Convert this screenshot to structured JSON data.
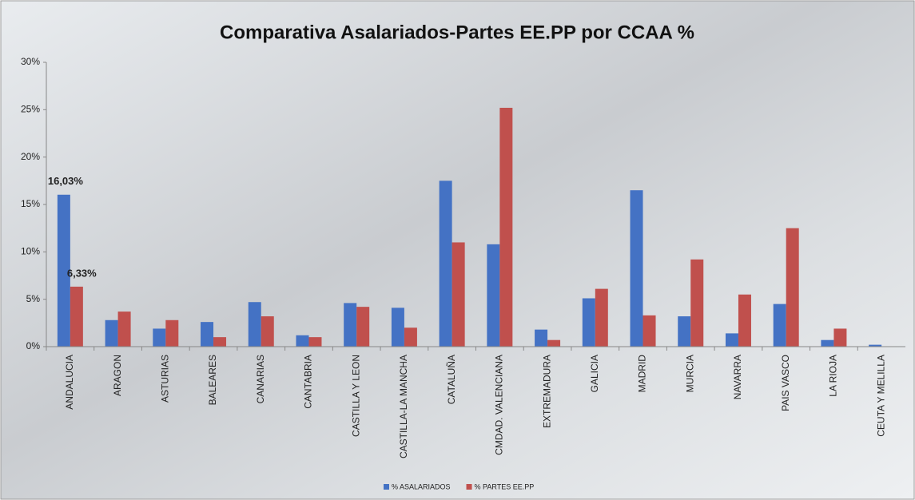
{
  "chart_data": {
    "type": "bar",
    "title": "Comparativa Asalariados-Partes EE.PP por CCAA %",
    "categories": [
      "ANDALUCIA",
      "ARAGON",
      "ASTURIAS",
      "BALEARES",
      "CANARIAS",
      "CANTABRIA",
      "CASTILLA Y LEON",
      "CASTILLA-LA MANCHA",
      "CATALUÑA",
      "CMDAD. VALENCIANA",
      "EXTREMADURA",
      "GALICIA",
      "MADRID",
      "MURCIA",
      "NAVARRA",
      "PAIS VASCO",
      "LA RIOJA",
      "CEUTA Y MELILLA"
    ],
    "series": [
      {
        "name": "% ASALARIADOS",
        "color": "#4472c4",
        "values": [
          16.03,
          2.8,
          1.9,
          2.6,
          4.7,
          1.2,
          4.6,
          4.1,
          17.5,
          10.8,
          1.8,
          5.1,
          16.5,
          3.2,
          1.4,
          4.5,
          0.7,
          0.2
        ],
        "value_labels": [
          "16,03%",
          null,
          null,
          null,
          null,
          null,
          null,
          null,
          null,
          null,
          null,
          null,
          null,
          null,
          null,
          null,
          null,
          null
        ]
      },
      {
        "name": "% PARTES EE.PP",
        "color": "#c0504d",
        "values": [
          6.33,
          3.7,
          2.8,
          1.0,
          3.2,
          1.0,
          4.2,
          2.0,
          11.0,
          25.2,
          0.7,
          6.1,
          3.3,
          9.2,
          5.5,
          12.5,
          1.9,
          0.0
        ],
        "value_labels": [
          "6,33%",
          null,
          null,
          null,
          null,
          null,
          null,
          null,
          null,
          null,
          null,
          null,
          null,
          null,
          null,
          null,
          null,
          null
        ]
      }
    ],
    "ylim": [
      0,
      30
    ],
    "yticks": [
      {
        "value": 0,
        "label": "0%"
      },
      {
        "value": 5,
        "label": "5%"
      },
      {
        "value": 10,
        "label": "10%"
      },
      {
        "value": 15,
        "label": "15%"
      },
      {
        "value": 20,
        "label": "20%"
      },
      {
        "value": 25,
        "label": "25%"
      },
      {
        "value": 30,
        "label": "30%"
      }
    ],
    "grid": false,
    "legend": "bottom"
  }
}
